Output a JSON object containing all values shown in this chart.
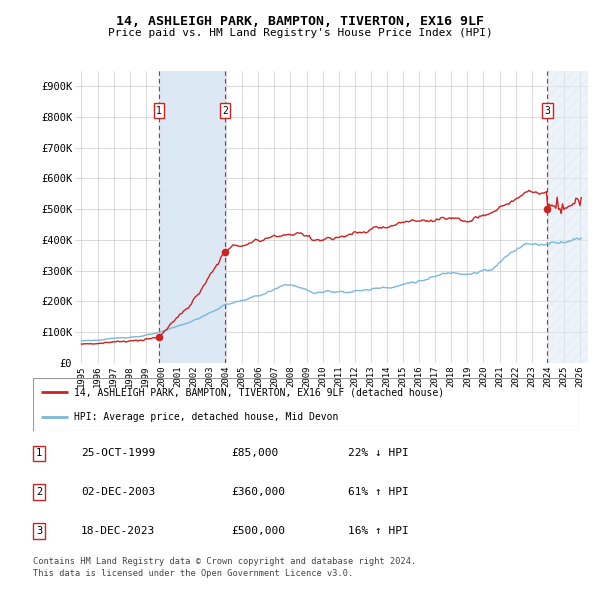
{
  "title": "14, ASHLEIGH PARK, BAMPTON, TIVERTON, EX16 9LF",
  "subtitle": "Price paid vs. HM Land Registry's House Price Index (HPI)",
  "ylim": [
    0,
    950000
  ],
  "yticks": [
    0,
    100000,
    200000,
    300000,
    400000,
    500000,
    600000,
    700000,
    800000,
    900000
  ],
  "ytick_labels": [
    "£0",
    "£100K",
    "£200K",
    "£300K",
    "£400K",
    "£500K",
    "£600K",
    "£700K",
    "£800K",
    "£900K"
  ],
  "xlim_start": 1994.6,
  "xlim_end": 2026.5,
  "sale_dates": [
    1999.82,
    2003.92,
    2023.96
  ],
  "sale_prices": [
    85000,
    360000,
    500000
  ],
  "sale_labels": [
    "1",
    "2",
    "3"
  ],
  "transaction_1": {
    "date": "25-OCT-1999",
    "price": "£85,000",
    "hpi": "22% ↓ HPI"
  },
  "transaction_2": {
    "date": "02-DEC-2003",
    "price": "£360,000",
    "hpi": "61% ↑ HPI"
  },
  "transaction_3": {
    "date": "18-DEC-2023",
    "price": "£500,000",
    "hpi": "16% ↑ HPI"
  },
  "hpi_line_color": "#7ab8d9",
  "price_line_color": "#cc2222",
  "sale_dot_color": "#cc2222",
  "sale_vline_color": "#cc2222",
  "shade_color_between_sales": "#dce9f5",
  "legend_line1": "14, ASHLEIGH PARK, BAMPTON, TIVERTON, EX16 9LF (detached house)",
  "legend_line2": "HPI: Average price, detached house, Mid Devon",
  "footer1": "Contains HM Land Registry data © Crown copyright and database right 2024.",
  "footer2": "This data is licensed under the Open Government Licence v3.0.",
  "background_color": "#ffffff",
  "grid_color": "#cccccc"
}
